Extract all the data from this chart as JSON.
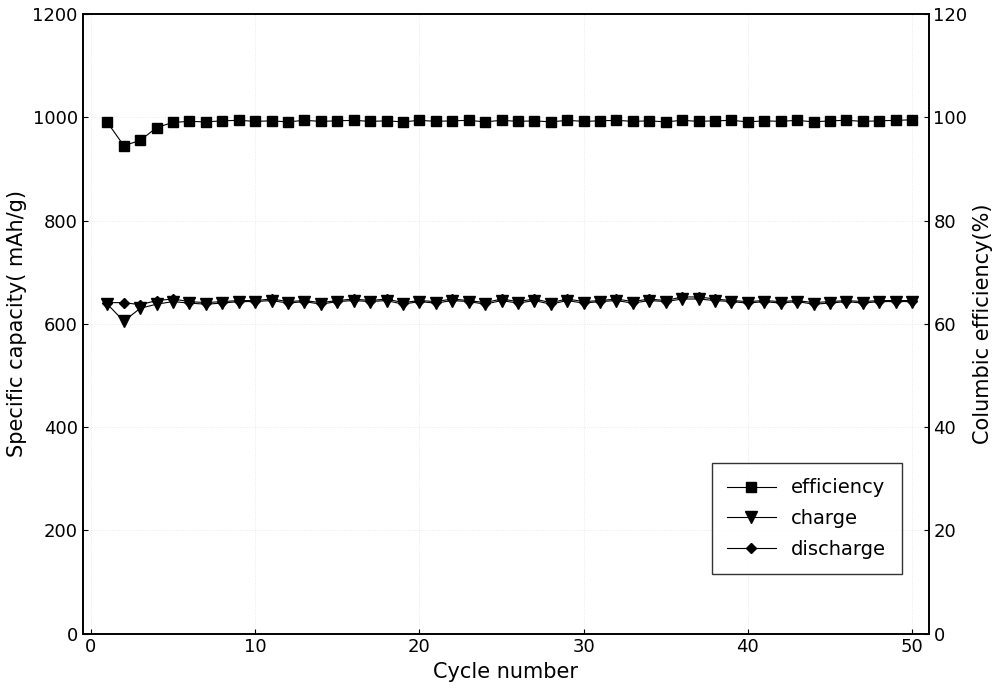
{
  "cycles": [
    1,
    2,
    3,
    4,
    5,
    6,
    7,
    8,
    9,
    10,
    11,
    12,
    13,
    14,
    15,
    16,
    17,
    18,
    19,
    20,
    21,
    22,
    23,
    24,
    25,
    26,
    27,
    28,
    29,
    30,
    31,
    32,
    33,
    34,
    35,
    36,
    37,
    38,
    39,
    40,
    41,
    42,
    43,
    44,
    45,
    46,
    47,
    48,
    49,
    50
  ],
  "efficiency": [
    99.0,
    94.5,
    95.5,
    98.0,
    99.0,
    99.2,
    99.1,
    99.3,
    99.4,
    99.2,
    99.3,
    99.1,
    99.4,
    99.2,
    99.3,
    99.4,
    99.2,
    99.3,
    99.1,
    99.4,
    99.2,
    99.3,
    99.4,
    99.1,
    99.4,
    99.2,
    99.3,
    99.1,
    99.4,
    99.2,
    99.3,
    99.4,
    99.2,
    99.3,
    99.1,
    99.4,
    99.2,
    99.3,
    99.4,
    99.1,
    99.3,
    99.2,
    99.4,
    99.1,
    99.3,
    99.4,
    99.2,
    99.3,
    99.4,
    99.5
  ],
  "charge": [
    638,
    605,
    630,
    638,
    643,
    640,
    638,
    640,
    643,
    643,
    645,
    640,
    643,
    638,
    643,
    645,
    643,
    645,
    638,
    643,
    640,
    645,
    643,
    638,
    645,
    640,
    645,
    638,
    645,
    640,
    643,
    645,
    640,
    645,
    643,
    648,
    648,
    645,
    643,
    640,
    643,
    640,
    643,
    638,
    640,
    643,
    640,
    643,
    643,
    643
  ],
  "discharge": [
    641,
    641,
    637,
    645,
    648,
    643,
    641,
    643,
    645,
    645,
    648,
    643,
    645,
    641,
    645,
    648,
    645,
    648,
    641,
    645,
    643,
    648,
    645,
    641,
    648,
    643,
    648,
    641,
    648,
    643,
    645,
    648,
    643,
    648,
    645,
    652,
    652,
    648,
    645,
    643,
    645,
    643,
    645,
    641,
    643,
    645,
    643,
    645,
    645,
    645
  ],
  "left_ylabel": "Specific capacity( mAh/g)",
  "right_ylabel": "Columbic efficiency(%)",
  "xlabel": "Cycle number",
  "left_ylim": [
    0,
    1200
  ],
  "right_ylim": [
    0,
    120
  ],
  "left_yticks": [
    0,
    200,
    400,
    600,
    800,
    1000,
    1200
  ],
  "right_yticks": [
    0,
    20,
    40,
    60,
    80,
    100,
    120
  ],
  "xlim": [
    -0.5,
    51
  ],
  "xticks": [
    0,
    10,
    20,
    30,
    40,
    50
  ],
  "line_color": "#000000",
  "legend_labels": [
    "efficiency",
    "charge",
    "discharge"
  ],
  "efficiency_marker": "s",
  "charge_marker": "v",
  "discharge_marker": "D",
  "efficiency_markersize": 7,
  "charge_markersize": 9,
  "discharge_markersize": 5,
  "linewidth": 0.8,
  "axis_fontsize": 15,
  "tick_fontsize": 13,
  "legend_fontsize": 14,
  "background_color": "#ffffff",
  "grid_color": "#cccccc",
  "grid_alpha": 0.5
}
